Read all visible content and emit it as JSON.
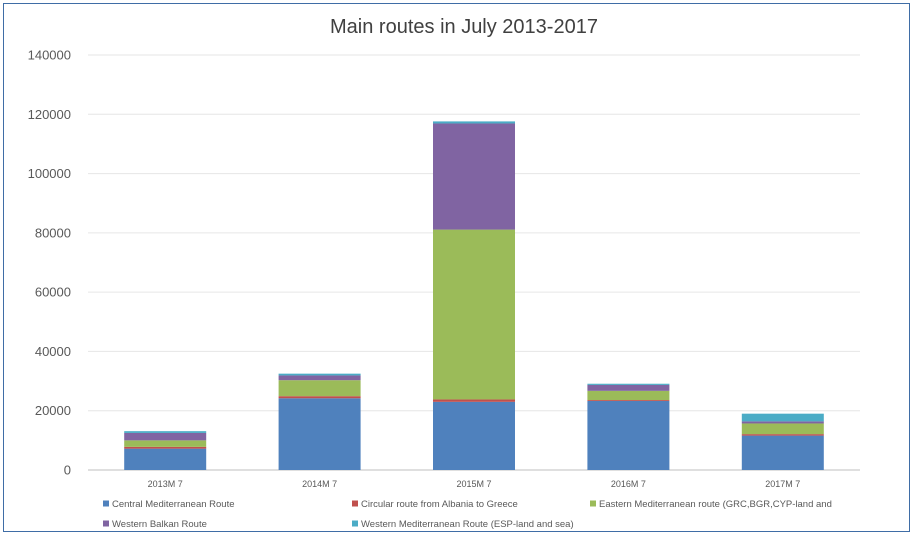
{
  "chart_data": {
    "type": "bar",
    "stacked": true,
    "title": "Main routes in July 2013-2017",
    "xlabel": "",
    "ylabel": "",
    "ylim": [
      0,
      140000
    ],
    "yticks": [
      0,
      20000,
      40000,
      60000,
      80000,
      100000,
      120000,
      140000
    ],
    "grid": true,
    "legend_position": "bottom",
    "categories": [
      "2013M 7",
      "2014M 7",
      "2015M 7",
      "2016M 7",
      "2017M 7"
    ],
    "series": [
      {
        "name": "Central Mediterranean Route",
        "color": "#4f81bd",
        "values": [
          7200,
          24200,
          23000,
          23300,
          11600
        ]
      },
      {
        "name": "Circular route from Albania to Greece",
        "color": "#c0504d",
        "values": [
          600,
          700,
          800,
          300,
          500
        ]
      },
      {
        "name": "Eastern Mediterranean route (GRC,BGR,CYP-land and",
        "color": "#9bbb59",
        "values": [
          2200,
          5400,
          57300,
          3100,
          3600
        ]
      },
      {
        "name": "Western Balkan Route",
        "color": "#8064a2",
        "values": [
          2500,
          1600,
          35800,
          2000,
          700
        ]
      },
      {
        "name": "Western Mediterranean Route (ESP-land and sea)",
        "color": "#4bacc6",
        "values": [
          600,
          600,
          700,
          400,
          2600
        ]
      }
    ]
  }
}
